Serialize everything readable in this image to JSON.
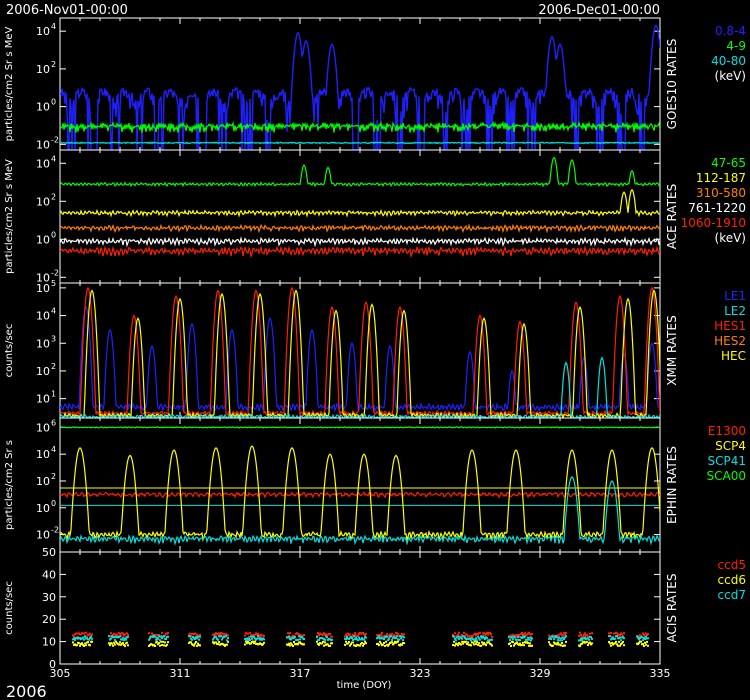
{
  "header": {
    "date_start": "2006-Nov01-00:00",
    "date_end": "2006-Dec01-00:00",
    "year": "2006"
  },
  "chart_data": [
    {
      "type": "line",
      "panel": "GOES10 RATES",
      "ylabel": "particles/cm2 Sr s MeV",
      "ylog": true,
      "ylim": [
        0.005,
        50000
      ],
      "y_ticks": [
        {
          "v": 0.01,
          "e": "-2"
        },
        {
          "v": 1,
          "e": "0"
        },
        {
          "v": 100,
          "e": "2"
        },
        {
          "v": 10000,
          "e": "4"
        }
      ],
      "legend": [
        "0.8-4",
        "4-9",
        "40-80",
        "(keV)"
      ],
      "legend_colors": [
        "#2020ff",
        "#00ff00",
        "#00e0e0",
        "#ffffff"
      ],
      "series": [
        {
          "name": "0.8-4",
          "color": "#2020ff",
          "base": 3,
          "amp": 1.2,
          "period": 1.1,
          "spikes": [
            [
              316.9,
              8000
            ],
            [
              317.3,
              3000
            ],
            [
              318.6,
              2000
            ],
            [
              329.6,
              5000
            ],
            [
              330.0,
              2000
            ],
            [
              334.8,
              20000
            ]
          ]
        },
        {
          "name": "4-9",
          "color": "#00ff00",
          "base": 0.09,
          "amp": 0.35,
          "period": 0.1,
          "spikes": []
        },
        {
          "name": "40-80",
          "color": "#00e0e0",
          "base": 0.012,
          "amp": 0.05,
          "period": 0.1,
          "spikes": []
        }
      ]
    },
    {
      "type": "line",
      "panel": "ACE RATES",
      "ylabel": "particles/cm2 Sr s MeV",
      "ylog": true,
      "ylim": [
        0.005,
        50000
      ],
      "y_ticks": [
        {
          "v": 0.01,
          "e": "-2"
        },
        {
          "v": 1,
          "e": "0"
        },
        {
          "v": 100,
          "e": "2"
        },
        {
          "v": 10000,
          "e": "4"
        }
      ],
      "legend": [
        "47-65",
        "112-187",
        "310-580",
        "761-1220",
        "1060-1910",
        "(keV)"
      ],
      "legend_colors": [
        "#00ff00",
        "#ffff00",
        "#ff8000",
        "#ffffff",
        "#ff2000",
        "#ffffff"
      ],
      "series": [
        {
          "name": "47-65",
          "color": "#00ff00",
          "base": 800,
          "amp": 0.1,
          "period": 0.2,
          "spikes": [
            [
              317.2,
              8000
            ],
            [
              318.4,
              6000
            ],
            [
              329.7,
              20000
            ],
            [
              330.6,
              15000
            ],
            [
              333.6,
              4000
            ]
          ]
        },
        {
          "name": "112-187",
          "color": "#ffff00",
          "base": 25,
          "amp": 0.15,
          "period": 0.2,
          "spikes": [
            [
              333.2,
              300
            ],
            [
              333.6,
              400
            ]
          ]
        },
        {
          "name": "310-580",
          "color": "#ff8000",
          "base": 4,
          "amp": 0.18,
          "period": 0.2,
          "spikes": []
        },
        {
          "name": "761-1220",
          "color": "#ffffff",
          "base": 0.8,
          "amp": 0.2,
          "period": 0.2,
          "spikes": []
        },
        {
          "name": "1060-1910",
          "color": "#ff2000",
          "base": 0.25,
          "amp": 0.25,
          "period": 0.2,
          "spikes": []
        }
      ]
    },
    {
      "type": "line",
      "panel": "XMM RATES",
      "ylabel": "counts/sec",
      "ylog": true,
      "ylim": [
        2,
        150000
      ],
      "y_ticks": [
        {
          "v": 10,
          "e": "1"
        },
        {
          "v": 100,
          "e": "2"
        },
        {
          "v": 1000,
          "e": "3"
        },
        {
          "v": 10000,
          "e": "4"
        },
        {
          "v": 100000,
          "e": "5"
        }
      ],
      "legend": [
        "LE1",
        "LE2",
        "HES1",
        "HES2",
        "HEC"
      ],
      "legend_colors": [
        "#2020ff",
        "#00e0e0",
        "#ff2000",
        "#ff8000",
        "#ffff00"
      ],
      "series": [
        {
          "name": "LE1",
          "color": "#2020ff",
          "base": 5,
          "amp": 0.15,
          "period": 0.2,
          "spikes": [
            [
              306.3,
              20000
            ],
            [
              307.5,
              3000
            ],
            [
              309.6,
              800
            ],
            [
              311.6,
              5000
            ],
            [
              313.6,
              3000
            ],
            [
              315.5,
              8000
            ],
            [
              317.6,
              3000
            ],
            [
              319.6,
              1000
            ],
            [
              321.5,
              800
            ],
            [
              325.5,
              500
            ],
            [
              327.6,
              100
            ],
            [
              331.2,
              300
            ],
            [
              333.2,
              400
            ],
            [
              334.6,
              1000
            ]
          ]
        },
        {
          "name": "HES1",
          "color": "#ff2000",
          "base": 3,
          "amp": 0.1,
          "period": 0.2,
          "spikes": [
            [
              306.4,
              100000
            ],
            [
              308.7,
              10000
            ],
            [
              310.8,
              50000
            ],
            [
              312.9,
              80000
            ],
            [
              314.8,
              80000
            ],
            [
              316.6,
              100000
            ],
            [
              318.6,
              20000
            ],
            [
              320.3,
              30000
            ],
            [
              322.0,
              20000
            ],
            [
              326.0,
              10000
            ],
            [
              328.0,
              6000
            ],
            [
              330.8,
              30000
            ],
            [
              333.0,
              50000
            ],
            [
              334.6,
              100000
            ]
          ]
        },
        {
          "name": "HEC",
          "color": "#ffff00",
          "base": 2.5,
          "amp": 0.1,
          "period": 0.2,
          "spikes": [
            [
              306.6,
              80000
            ],
            [
              308.9,
              8000
            ],
            [
              311.0,
              40000
            ],
            [
              313.1,
              60000
            ],
            [
              315.0,
              60000
            ],
            [
              316.8,
              80000
            ],
            [
              318.8,
              15000
            ],
            [
              320.6,
              25000
            ],
            [
              322.2,
              15000
            ],
            [
              326.2,
              8000
            ],
            [
              328.2,
              5000
            ],
            [
              331.0,
              20000
            ],
            [
              333.4,
              40000
            ],
            [
              334.7,
              80000
            ]
          ]
        },
        {
          "name": "LE2",
          "color": "#00e0e0",
          "base": 2.2,
          "amp": 0.1,
          "period": 0.2,
          "spikes": [
            [
              330.3,
              200
            ],
            [
              332.1,
              300
            ]
          ]
        }
      ]
    },
    {
      "type": "line",
      "panel": "EPHIN RATES",
      "ylabel": "particles/cm2 Sr s",
      "ylog": true,
      "ylim": [
        0.0005,
        5000000
      ],
      "y_ticks": [
        {
          "v": 0.01,
          "e": "-2"
        },
        {
          "v": 1,
          "e": "0"
        },
        {
          "v": 100,
          "e": "2"
        },
        {
          "v": 10000,
          "e": "4"
        },
        {
          "v": 1000000,
          "e": "6"
        }
      ],
      "legend": [
        "E1300",
        "SCP4",
        "SCP41",
        "SCA00"
      ],
      "legend_colors": [
        "#ff2000",
        "#ffff00",
        "#00e0e0",
        "#00ff00"
      ],
      "series": [
        {
          "name": "SCA00",
          "color": "#00ff00",
          "base": 1000000,
          "amp": 0.05,
          "period": 0.2,
          "spikes": []
        },
        {
          "name": "E1300",
          "color": "#ff2000",
          "base": 10,
          "amp": 0.2,
          "period": 0.3,
          "spikes": []
        },
        {
          "name": "SCP4",
          "color": "#ffff00",
          "base": 0.01,
          "amp": 0.3,
          "period": 0.2,
          "spikes": [
            [
              306.0,
              30000
            ],
            [
              308.5,
              8000
            ],
            [
              310.7,
              20000
            ],
            [
              312.8,
              30000
            ],
            [
              314.6,
              40000
            ],
            [
              316.6,
              30000
            ],
            [
              318.5,
              10000
            ],
            [
              320.2,
              10000
            ],
            [
              321.8,
              8000
            ],
            [
              325.6,
              20000
            ],
            [
              327.8,
              20000
            ],
            [
              330.6,
              20000
            ],
            [
              332.6,
              20000
            ],
            [
              334.6,
              30000
            ]
          ]
        },
        {
          "name": "SCP41",
          "color": "#00e0e0",
          "base": 0.005,
          "amp": 0.3,
          "period": 0.2,
          "spikes": [
            [
              330.6,
              200
            ],
            [
              332.6,
              100
            ]
          ]
        }
      ],
      "hlines": [
        {
          "v": 30,
          "color": "#ffff00"
        },
        {
          "v": 1.5,
          "color": "#00e0e0"
        }
      ]
    },
    {
      "type": "scatter",
      "panel": "ACIS RATES",
      "ylabel": "counts/sec",
      "ylog": false,
      "ylim": [
        0,
        50
      ],
      "y_ticks": [
        {
          "v": 0,
          "t": "0"
        },
        {
          "v": 10,
          "t": "10"
        },
        {
          "v": 20,
          "t": "20"
        },
        {
          "v": 30,
          "t": "30"
        },
        {
          "v": 40,
          "t": "40"
        },
        {
          "v": 50,
          "t": "50"
        }
      ],
      "legend": [
        "ccd5",
        "ccd6",
        "ccd7"
      ],
      "legend_colors": [
        "#ff2000",
        "#ffff00",
        "#00e0e0"
      ],
      "segments": [
        [
          305.6,
          306.6
        ],
        [
          307.4,
          308.4
        ],
        [
          309.4,
          310.4
        ],
        [
          311.4,
          312.0
        ],
        [
          312.6,
          313.4
        ],
        [
          314.2,
          315.2
        ],
        [
          316.3,
          317.2
        ],
        [
          317.8,
          318.6
        ],
        [
          319.2,
          320.3
        ],
        [
          320.8,
          322.2
        ],
        [
          324.6,
          326.6
        ],
        [
          327.4,
          328.6
        ],
        [
          329.4,
          330.3
        ],
        [
          330.9,
          331.6
        ],
        [
          332.4,
          333.2
        ],
        [
          333.8,
          334.4
        ]
      ],
      "series": [
        {
          "name": "ccd5",
          "color": "#ff2000",
          "level": 13
        },
        {
          "name": "ccd6",
          "color": "#ffff00",
          "level": 9
        },
        {
          "name": "ccd7",
          "color": "#00e0e0",
          "level": 11.5
        }
      ]
    }
  ],
  "x_axis": {
    "label": "time (DOY)",
    "xlim": [
      305,
      335
    ],
    "tick_labels": [
      "305",
      "311",
      "317",
      "323",
      "329",
      "335"
    ]
  }
}
